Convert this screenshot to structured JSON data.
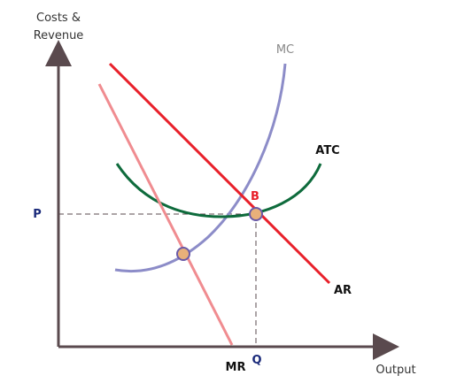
{
  "axes": {
    "y_label": [
      "Costs &",
      "Revenue"
    ],
    "x_label": "Output"
  },
  "curves": [
    {
      "label": "MC"
    },
    {
      "label": "ATC"
    },
    {
      "label": "AR"
    },
    {
      "label": "MR"
    }
  ],
  "points": [
    {
      "label": "B"
    }
  ],
  "price_label": "P",
  "quantity_label": "Q"
}
